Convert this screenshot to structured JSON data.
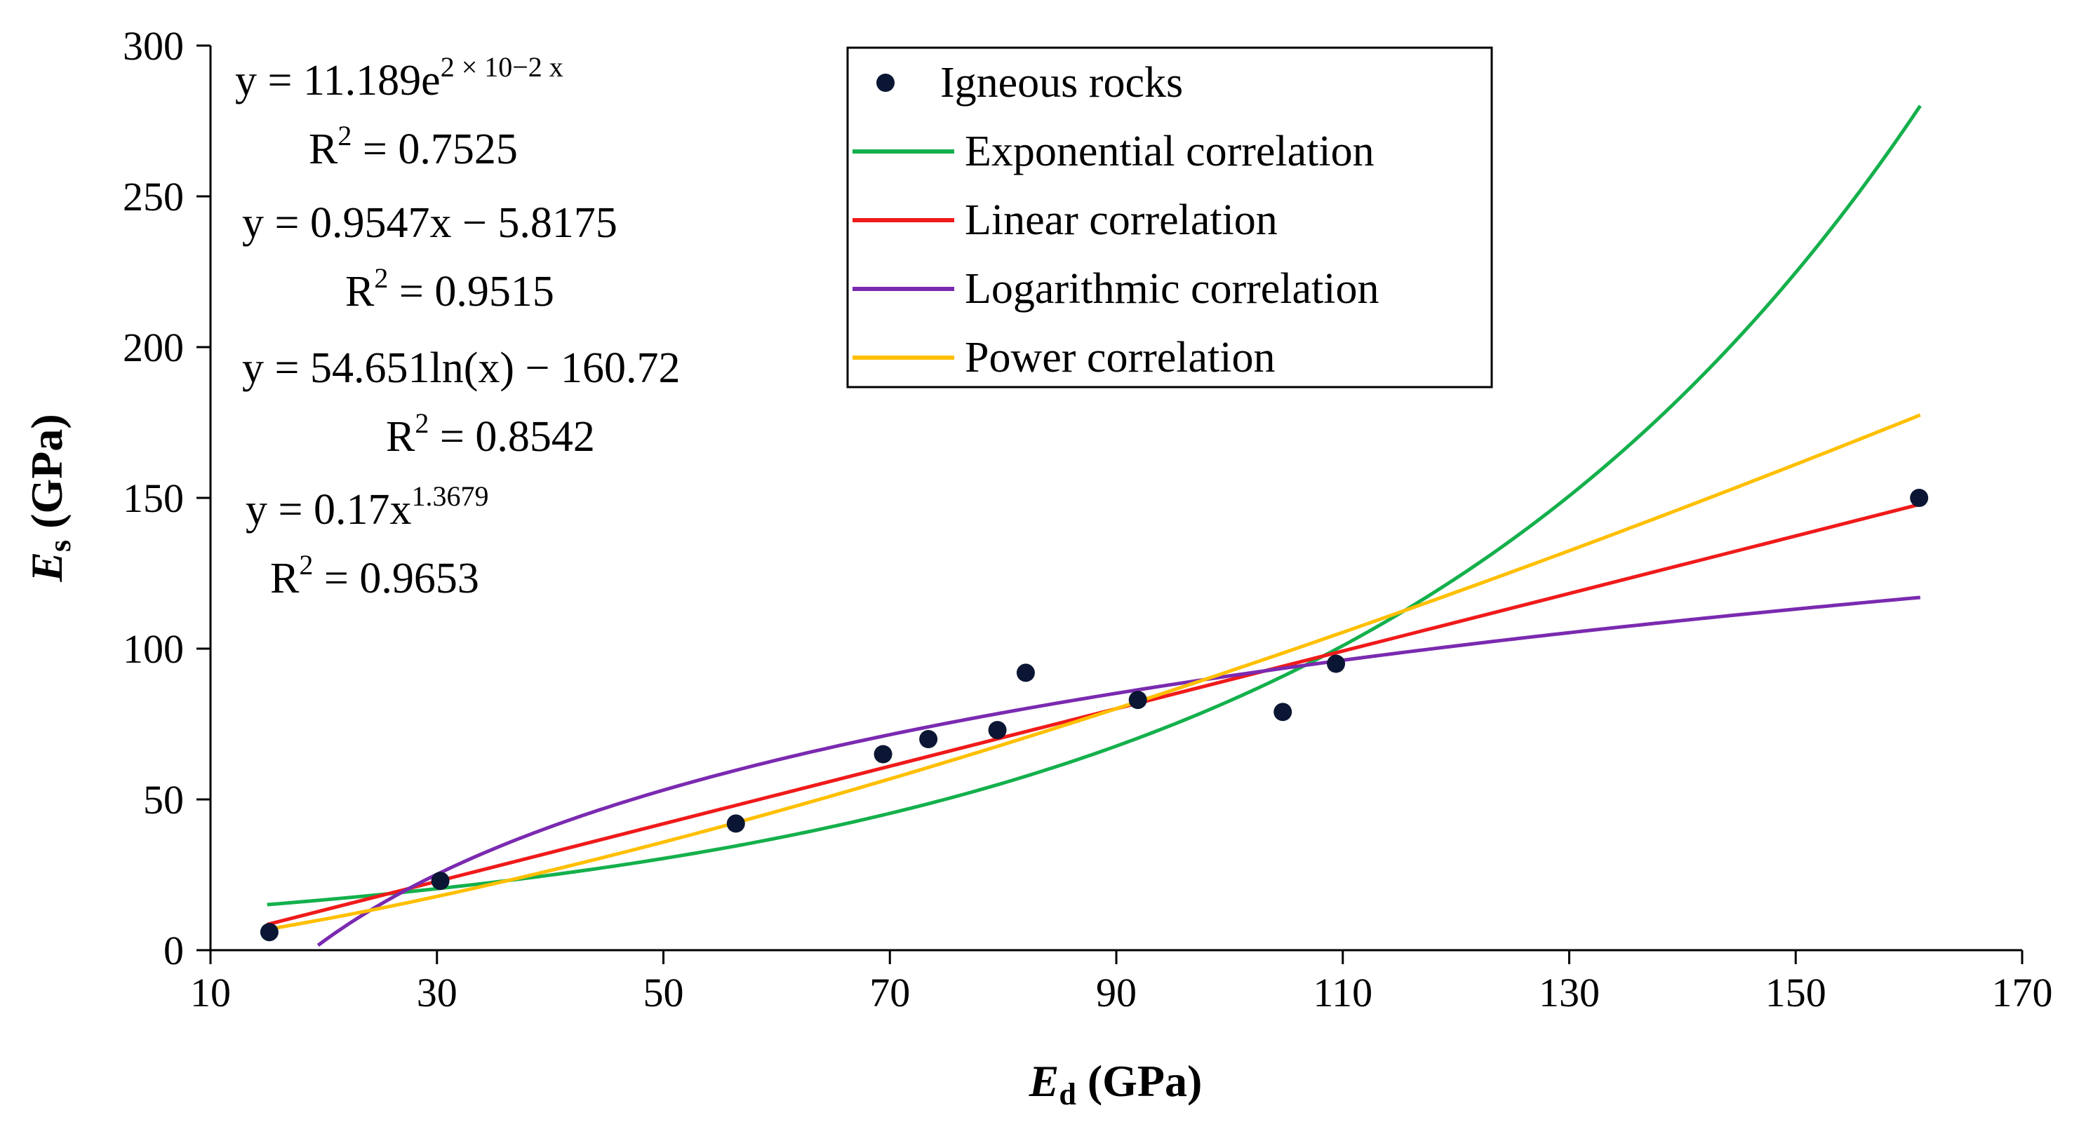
{
  "chart_data": {
    "type": "scatter",
    "xlabel": "E",
    "xlabel_sub": "d",
    "xlabel_unit": "(GPa)",
    "ylabel": "E",
    "ylabel_sub": "s",
    "ylabel_unit": "(GPa)",
    "xlim": [
      10,
      170
    ],
    "ylim": [
      0,
      300
    ],
    "xticks": [
      10,
      30,
      50,
      70,
      90,
      110,
      130,
      150,
      170
    ],
    "yticks": [
      0,
      50,
      100,
      150,
      200,
      250,
      300
    ],
    "grid": false,
    "legend_position": "top-center",
    "series": [
      {
        "name": "Igneous rocks",
        "kind": "scatter",
        "color": "#0a1633",
        "x": [
          15.2,
          30.3,
          56.4,
          69.4,
          73.4,
          79.5,
          82,
          91.9,
          104.7,
          109.4,
          160.9
        ],
        "y": [
          6,
          23,
          42,
          65,
          70,
          73,
          92,
          83,
          79,
          95,
          150
        ]
      },
      {
        "name": "Exponential correlation",
        "kind": "exponential",
        "color": "#14b04c",
        "a": 11.189,
        "b": 0.02,
        "x_range": [
          15,
          161
        ]
      },
      {
        "name": "Linear correlation",
        "kind": "linear",
        "color": "#f01a1a",
        "slope": 0.9547,
        "intercept": -5.8175,
        "x_range": [
          15,
          161
        ]
      },
      {
        "name": "Logarithmic correlation",
        "kind": "logarithmic",
        "color": "#7a2ab0",
        "a": 54.651,
        "b": -160.72,
        "x_range": [
          19.5,
          161
        ]
      },
      {
        "name": "Power correlation",
        "kind": "power",
        "color": "#ffbf00",
        "a": 0.17,
        "b": 1.3679,
        "x_range": [
          15,
          161
        ]
      }
    ],
    "annotations": [
      {
        "main": "y = 11.189e",
        "sup": "2 × 10−2 x"
      },
      {
        "main": "R",
        "sup": "2",
        "tail": " = 0.7525"
      },
      {
        "main": "y = 0.9547x − 5.8175"
      },
      {
        "main": "R",
        "sup": "2",
        "tail": " = 0.9515"
      },
      {
        "main": "y = 54.651ln(x) − 160.72"
      },
      {
        "main": "R",
        "sup": "2",
        "tail": " = 0.8542"
      },
      {
        "main": "y = 0.17x",
        "sup": "1.3679"
      },
      {
        "main": "R",
        "sup": "2",
        "tail": " = 0.9653"
      }
    ]
  }
}
